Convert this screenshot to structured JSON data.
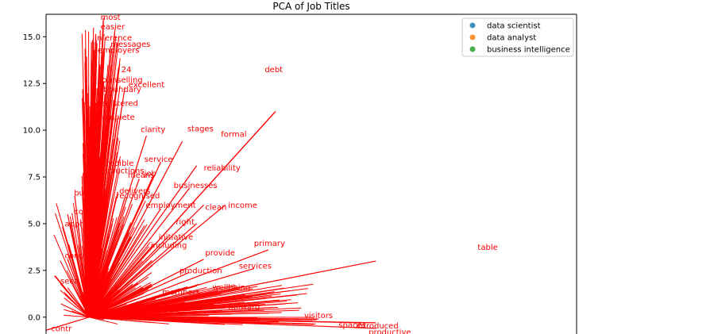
{
  "chart_data": {
    "type": "scatter",
    "title": "PCA of Job Titles",
    "xlabel": "",
    "ylabel": "",
    "ylim": [
      -0.9,
      16.2
    ],
    "yticks": [
      0.0,
      2.5,
      5.0,
      7.5,
      10.0,
      12.5,
      15.0
    ],
    "ytick_labels": [
      "0.0",
      "2.5",
      "5.0",
      "7.5",
      "10.0",
      "12.5",
      "15.0"
    ],
    "x_axis_range": [
      -0.6,
      6.8
    ],
    "grid": false,
    "legend_placement": "top-right",
    "series": [
      {
        "name": "data scientist",
        "color": "#1f77b4",
        "values": []
      },
      {
        "name": "data analyst",
        "color": "#ff7f0e",
        "values": []
      },
      {
        "name": "business intelligence",
        "color": "#2ca02c",
        "values": []
      }
    ],
    "loading_vector_color": "#ff0000",
    "loading_vectors": [
      {
        "word": "table",
        "x": 4.0,
        "y": 3.0
      },
      {
        "word": "debt",
        "x": 2.6,
        "y": 11.0
      },
      {
        "word": "formal",
        "x": 2.6,
        "y": 11.0
      },
      {
        "word": "stages",
        "x": 1.3,
        "y": 9.4
      },
      {
        "word": "clarity",
        "x": 0.8,
        "y": 9.7
      },
      {
        "word": "service",
        "x": 1.0,
        "y": 8.3
      },
      {
        "word": "reliability",
        "x": 1.5,
        "y": 8.1
      },
      {
        "word": "job",
        "x": 0.9,
        "y": 7.6
      },
      {
        "word": "means",
        "x": 0.7,
        "y": 7.4
      },
      {
        "word": "businesses",
        "x": 1.4,
        "y": 6.9
      },
      {
        "word": "clean",
        "x": 1.6,
        "y": 6.0
      },
      {
        "word": "income",
        "x": 1.9,
        "y": 6.0
      },
      {
        "word": "employment",
        "x": 1.0,
        "y": 5.8
      },
      {
        "word": "right",
        "x": 1.5,
        "y": 5.0
      },
      {
        "word": "primary",
        "x": 2.5,
        "y": 3.6
      },
      {
        "word": "services",
        "x": 2.3,
        "y": 2.6
      },
      {
        "word": "provide",
        "x": 1.6,
        "y": 3.1
      },
      {
        "word": "wellbeing",
        "x": 1.8,
        "y": 1.4
      },
      {
        "word": "excellent",
        "x": 0.5,
        "y": 12.3
      },
      {
        "word": "24",
        "x": 0.4,
        "y": 13.0
      },
      {
        "word": "inference",
        "x": 0.1,
        "y": 14.8
      },
      {
        "word": "messages",
        "x": 0.3,
        "y": 14.5
      },
      {
        "word": "easier",
        "x": 0.2,
        "y": 15.8
      },
      {
        "word": "employers",
        "x": 0.2,
        "y": 14.2
      },
      {
        "word": "counselling",
        "x": 0.2,
        "y": 12.6
      },
      {
        "word": "boundary",
        "x": 0.3,
        "y": 12.0
      },
      {
        "word": "registered",
        "x": 0.1,
        "y": 11.3
      },
      {
        "word": "complete",
        "x": 0.1,
        "y": 10.8
      },
      {
        "word": "credible",
        "x": 0.2,
        "y": 8.3
      },
      {
        "word": "instructions",
        "x": 0.2,
        "y": 8.0
      },
      {
        "word": "delivers",
        "x": 0.4,
        "y": 6.7
      },
      {
        "word": "recognised",
        "x": 0.5,
        "y": 6.4
      },
      {
        "word": "initiative",
        "x": 1.1,
        "y": 4.3
      },
      {
        "word": "including",
        "x": 0.9,
        "y": 3.9
      },
      {
        "word": "production",
        "x": 1.4,
        "y": 2.4
      },
      {
        "word": "members",
        "x": 1.1,
        "y": 1.2
      },
      {
        "word": "fullward",
        "x": 1.9,
        "y": 0.5
      },
      {
        "word": "introduced",
        "x": 4.0,
        "y": -0.3
      },
      {
        "word": "productive",
        "x": 4.0,
        "y": -0.6
      },
      {
        "word": "spaces",
        "x": 3.8,
        "y": -0.3
      },
      {
        "word": "visitors",
        "x": 3.2,
        "y": -0.1
      },
      {
        "word": "content",
        "x": -0.3,
        "y": 5.5
      },
      {
        "word": "button",
        "x": -0.2,
        "y": 6.5
      },
      {
        "word": "contr",
        "x": -0.3,
        "y": 3.1
      },
      {
        "word": "seen",
        "x": -0.4,
        "y": 1.8
      },
      {
        "word": "contr",
        "x": -0.6,
        "y": -0.7
      },
      {
        "word": "most",
        "x": 0.2,
        "y": 16.0
      }
    ],
    "visible_word_labels": [
      {
        "text": "most",
        "x": 0.16,
        "y": 15.9
      },
      {
        "text": "easier",
        "x": 0.16,
        "y": 15.4
      },
      {
        "text": "inference",
        "x": 0.08,
        "y": 14.8
      },
      {
        "text": "messages",
        "x": 0.3,
        "y": 14.45
      },
      {
        "text": "employers",
        "x": 0.12,
        "y": 14.15
      },
      {
        "text": "24",
        "x": 0.45,
        "y": 13.1
      },
      {
        "text": "debt",
        "x": 2.45,
        "y": 13.1
      },
      {
        "text": "counselling",
        "x": 0.12,
        "y": 12.55
      },
      {
        "text": "excellent",
        "x": 0.55,
        "y": 12.3
      },
      {
        "text": "boundary",
        "x": 0.2,
        "y": 12.05
      },
      {
        "text": "registered",
        "x": 0.12,
        "y": 11.3
      },
      {
        "text": "complete",
        "x": 0.12,
        "y": 10.55
      },
      {
        "text": "clarity",
        "x": 0.72,
        "y": 9.9
      },
      {
        "text": "stages",
        "x": 1.37,
        "y": 9.95
      },
      {
        "text": "formal",
        "x": 1.84,
        "y": 9.65
      },
      {
        "text": "service",
        "x": 0.77,
        "y": 8.3
      },
      {
        "text": "reliability",
        "x": 1.6,
        "y": 7.85
      },
      {
        "text": "credible",
        "x": 0.18,
        "y": 8.1
      },
      {
        "text": "instructions",
        "x": 0.12,
        "y": 7.7
      },
      {
        "text": "job",
        "x": 0.77,
        "y": 7.55
      },
      {
        "text": "means",
        "x": 0.54,
        "y": 7.45
      },
      {
        "text": "businesses",
        "x": 1.18,
        "y": 6.9
      },
      {
        "text": "delivers",
        "x": 0.42,
        "y": 6.6
      },
      {
        "text": "button",
        "x": -0.21,
        "y": 6.5
      },
      {
        "text": "recognised",
        "x": 0.38,
        "y": 6.35
      },
      {
        "text": "employment",
        "x": 0.79,
        "y": 5.85
      },
      {
        "text": "clean",
        "x": 1.62,
        "y": 5.75
      },
      {
        "text": "income",
        "x": 1.94,
        "y": 5.85
      },
      {
        "text": "content",
        "x": -0.21,
        "y": 5.5
      },
      {
        "text": "right",
        "x": 1.21,
        "y": 4.95
      },
      {
        "text": "appr",
        "x": -0.34,
        "y": 4.85
      },
      {
        "text": "initiative",
        "x": 0.97,
        "y": 4.15
      },
      {
        "text": "primary",
        "x": 2.3,
        "y": 3.8
      },
      {
        "text": "including",
        "x": 0.86,
        "y": 3.7
      },
      {
        "text": "table",
        "x": 5.42,
        "y": 3.6
      },
      {
        "text": "provide",
        "x": 1.62,
        "y": 3.3
      },
      {
        "text": "contr",
        "x": -0.34,
        "y": 3.15
      },
      {
        "text": "services",
        "x": 2.09,
        "y": 2.6
      },
      {
        "text": "production",
        "x": 1.26,
        "y": 2.35
      },
      {
        "text": "seen",
        "x": -0.4,
        "y": 1.8
      },
      {
        "text": "wellbeing",
        "x": 1.72,
        "y": 1.45
      },
      {
        "text": "members",
        "x": 1.02,
        "y": 1.2
      },
      {
        "text": "fullward",
        "x": 1.94,
        "y": 0.4
      },
      {
        "text": "visitors",
        "x": 3.0,
        "y": -0.05
      },
      {
        "text": "spaces",
        "x": 3.48,
        "y": -0.55
      },
      {
        "text": "introduced",
        "x": 3.72,
        "y": -0.6
      },
      {
        "text": "productive",
        "x": 3.9,
        "y": -0.95
      },
      {
        "text": "contr",
        "x": -0.53,
        "y": -0.75
      }
    ]
  }
}
